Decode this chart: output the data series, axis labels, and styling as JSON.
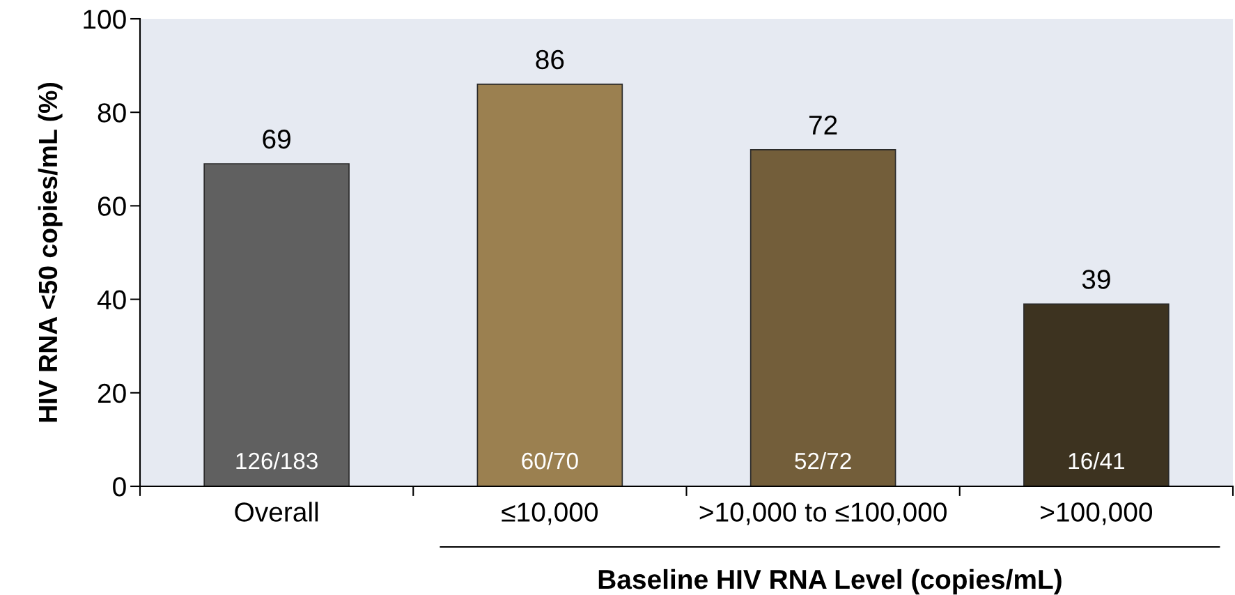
{
  "chart_data": {
    "type": "bar",
    "xlabel": "Baseline HIV RNA Level (copies/mL)",
    "ylabel": "HIV RNA <50 copies/mL (%)",
    "categories": [
      "Overall",
      "≤10,000",
      ">10,000 to ≤100,000",
      ">100,000"
    ],
    "values": [
      69,
      86,
      72,
      39
    ],
    "colors": [
      "#606060",
      "#9b8050",
      "#735e3a",
      "#3d3320"
    ],
    "ylim": [
      0,
      100
    ],
    "yticks": [
      0,
      20,
      40,
      60,
      80,
      100
    ],
    "data_labels": true,
    "grid": false,
    "legend": false,
    "annotations": [
      "126/183",
      "60/70",
      "52/72",
      "16/41"
    ]
  }
}
